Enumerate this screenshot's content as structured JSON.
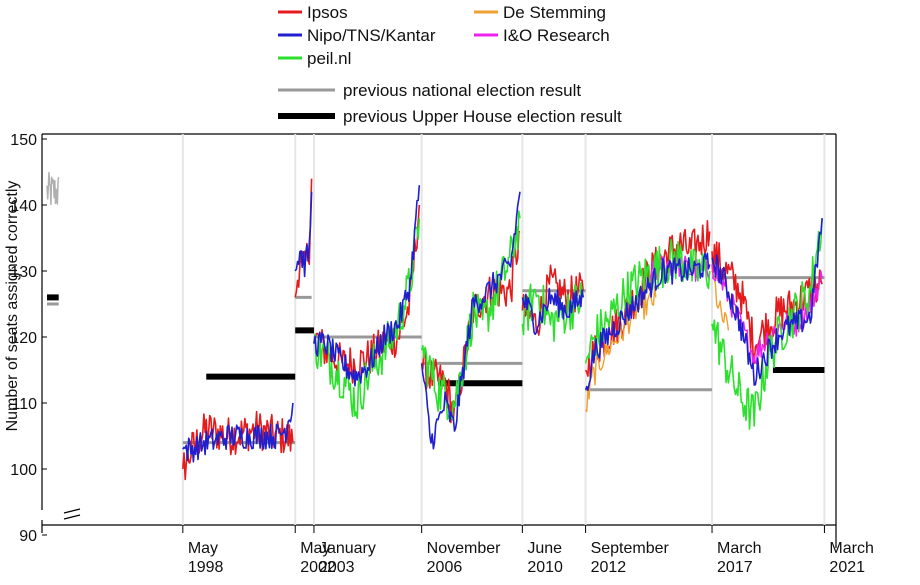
{
  "chart_data": {
    "type": "line",
    "title": "",
    "xlabel": "",
    "ylabel": "Number of seats assigned correctly",
    "ylim": [
      90,
      150
    ],
    "y_axis_break": true,
    "grid": false,
    "legend_placement": "top-center",
    "y_ticks": [
      90,
      100,
      110,
      120,
      130,
      140,
      150
    ],
    "x_ticks": [
      {
        "label": [
          "May",
          "1998"
        ],
        "date": "1998-05"
      },
      {
        "label": [
          "May",
          "2002"
        ],
        "date": "2002-05"
      },
      {
        "label": [
          "January",
          "2003"
        ],
        "date": "2003-01"
      },
      {
        "label": [
          "November",
          "2006"
        ],
        "date": "2006-11"
      },
      {
        "label": [
          "June",
          "2010"
        ],
        "date": "2010-06"
      },
      {
        "label": [
          "September",
          "2012"
        ],
        "date": "2012-09"
      },
      {
        "label": [
          "March",
          "2017"
        ],
        "date": "2017-03"
      },
      {
        "label": [
          "March",
          "2021"
        ],
        "date": "2021-03"
      }
    ],
    "legend": [
      {
        "name": "Ipsos",
        "color": "#e41a1c",
        "kind": "series"
      },
      {
        "name": "De Stemming",
        "color": "#f0a030",
        "kind": "series"
      },
      {
        "name": "Nipo/TNS/Kantar",
        "color": "#1f1fd0",
        "kind": "series"
      },
      {
        "name": "I&O Research",
        "color": "#ee22ee",
        "kind": "series"
      },
      {
        "name": "peil.nl",
        "color": "#2ee02e",
        "kind": "series"
      },
      {
        "name": "previous national election result",
        "color": "#999999",
        "kind": "reference"
      },
      {
        "name": "previous Upper House election result",
        "color": "#000000",
        "kind": "reference"
      }
    ],
    "series": [
      {
        "name": "Ipsos",
        "color": "#e41a1c",
        "noise": 3.0,
        "lw": 1.6,
        "segments": [
          [
            [
              "1998-05",
              100
            ],
            [
              "1998-09",
              103
            ],
            [
              "1999-03",
              106
            ],
            [
              "2000-01",
              105
            ],
            [
              "2001-01",
              106
            ],
            [
              "2001-09",
              105
            ],
            [
              "2002-01",
              105
            ],
            [
              "2002-04",
              104
            ]
          ],
          [
            [
              "2002-05",
              126
            ],
            [
              "2002-07",
              132
            ],
            [
              "2002-09",
              130
            ],
            [
              "2002-11",
              134
            ],
            [
              "2002-12",
              144
            ]
          ],
          [
            [
              "2003-01",
              120
            ],
            [
              "2003-06",
              118
            ],
            [
              "2004-01",
              116
            ],
            [
              "2004-07",
              116
            ],
            [
              "2005-01",
              117
            ],
            [
              "2005-07",
              119
            ],
            [
              "2006-01",
              120
            ],
            [
              "2006-06",
              125
            ],
            [
              "2006-10",
              140
            ]
          ],
          [
            [
              "2006-11",
              116
            ],
            [
              "2007-03",
              114
            ],
            [
              "2007-09",
              113
            ],
            [
              "2008-01",
              108
            ],
            [
              "2008-06",
              118
            ],
            [
              "2008-09",
              124
            ],
            [
              "2009-01",
              126
            ],
            [
              "2009-06",
              127
            ],
            [
              "2010-01",
              127
            ],
            [
              "2010-05",
              136
            ]
          ],
          [
            [
              "2010-06",
              124
            ],
            [
              "2010-12",
              122
            ],
            [
              "2011-06",
              128
            ],
            [
              "2012-01",
              126
            ],
            [
              "2012-08",
              127
            ]
          ],
          [
            [
              "2012-09",
              115
            ],
            [
              "2013-01",
              118
            ],
            [
              "2013-06",
              120
            ],
            [
              "2014-01",
              123
            ],
            [
              "2014-06",
              126
            ],
            [
              "2015-01",
              130
            ],
            [
              "2015-06",
              132
            ],
            [
              "2016-01",
              134
            ],
            [
              "2016-06",
              133
            ],
            [
              "2017-02",
              136
            ]
          ],
          [
            [
              "2017-03",
              133
            ],
            [
              "2017-09",
              130
            ],
            [
              "2018-03",
              127
            ],
            [
              "2018-09",
              119
            ],
            [
              "2019-03",
              122
            ],
            [
              "2019-09",
              124
            ],
            [
              "2020-03",
              125
            ],
            [
              "2020-09",
              127
            ],
            [
              "2021-02",
              128
            ]
          ]
        ]
      },
      {
        "name": "De Stemming",
        "color": "#f0a030",
        "noise": 2.0,
        "lw": 1.4,
        "segments": [
          [
            [
              "2012-09",
              109
            ],
            [
              "2012-12",
              114
            ],
            [
              "2013-06",
              118
            ],
            [
              "2014-01",
              121
            ],
            [
              "2014-06",
              124
            ],
            [
              "2014-12",
              125
            ],
            [
              "2015-03",
              126
            ]
          ],
          [
            [
              "2017-03",
              130
            ],
            [
              "2017-06",
              124
            ],
            [
              "2017-10",
              121
            ]
          ]
        ]
      },
      {
        "name": "I&O Research",
        "color": "#ee22ee",
        "noise": 2.0,
        "lw": 1.4,
        "segments": [
          [
            [
              "2014-12",
              129
            ],
            [
              "2015-06",
              131
            ],
            [
              "2016-01",
              131
            ],
            [
              "2016-06",
              130
            ],
            [
              "2017-02",
              130
            ]
          ],
          [
            [
              "2017-03",
              131
            ],
            [
              "2017-09",
              127
            ],
            [
              "2018-03",
              122
            ],
            [
              "2018-09",
              117
            ],
            [
              "2019-03",
              120
            ],
            [
              "2019-09",
              122
            ],
            [
              "2020-03",
              122
            ],
            [
              "2020-09",
              125
            ],
            [
              "2021-02",
              129
            ]
          ]
        ]
      },
      {
        "name": "peil.nl",
        "color": "#2ee02e",
        "noise": 3.5,
        "lw": 1.6,
        "segments": [
          [
            [
              "2003-01",
              119
            ],
            [
              "2003-06",
              117
            ],
            [
              "2004-01",
              114
            ],
            [
              "2004-07",
              110
            ],
            [
              "2005-01",
              115
            ],
            [
              "2005-07",
              118
            ],
            [
              "2006-01",
              122
            ],
            [
              "2006-06",
              128
            ],
            [
              "2006-10",
              138
            ]
          ],
          [
            [
              "2006-11",
              118
            ],
            [
              "2007-06",
              112
            ],
            [
              "2008-01",
              110
            ],
            [
              "2008-06",
              118
            ],
            [
              "2008-09",
              124
            ],
            [
              "2009-01",
              122
            ],
            [
              "2009-06",
              126
            ],
            [
              "2010-01",
              132
            ],
            [
              "2010-05",
              138
            ]
          ],
          [
            [
              "2010-06",
              122
            ],
            [
              "2010-12",
              127
            ],
            [
              "2011-06",
              122
            ],
            [
              "2012-01",
              124
            ],
            [
              "2012-08",
              126
            ]
          ],
          [
            [
              "2012-09",
              116
            ],
            [
              "2013-01",
              120
            ],
            [
              "2013-06",
              122
            ],
            [
              "2014-01",
              126
            ],
            [
              "2014-06",
              128
            ],
            [
              "2015-01",
              130
            ],
            [
              "2015-06",
              131
            ],
            [
              "2016-01",
              132
            ],
            [
              "2016-06",
              130
            ],
            [
              "2017-02",
              130
            ]
          ],
          [
            [
              "2017-03",
              122
            ],
            [
              "2017-09",
              116
            ],
            [
              "2018-03",
              111
            ],
            [
              "2018-09",
              108
            ],
            [
              "2019-03",
              117
            ],
            [
              "2019-09",
              121
            ],
            [
              "2020-03",
              124
            ],
            [
              "2020-09",
              127
            ],
            [
              "2021-02",
              138
            ]
          ]
        ]
      },
      {
        "name": "Nipo/TNS/Kantar",
        "color": "#1f1fd0",
        "noise": 2.0,
        "lw": 1.6,
        "segments": [
          [
            [
              "1998-05",
              103
            ],
            [
              "1998-09",
              103
            ],
            [
              "1999-03",
              104
            ],
            [
              "2000-01",
              105
            ],
            [
              "2001-01",
              105
            ],
            [
              "2001-09",
              105
            ],
            [
              "2002-01",
              106
            ],
            [
              "2002-04",
              110
            ]
          ],
          [
            [
              "2002-05",
              130
            ],
            [
              "2002-07",
              133
            ],
            [
              "2002-09",
              131
            ],
            [
              "2002-11",
              133
            ],
            [
              "2002-12",
              142
            ]
          ],
          [
            [
              "2003-01",
              119
            ],
            [
              "2003-06",
              119
            ],
            [
              "2004-01",
              116
            ],
            [
              "2004-07",
              114
            ],
            [
              "2005-01",
              116
            ],
            [
              "2005-07",
              120
            ],
            [
              "2006-01",
              122
            ],
            [
              "2006-06",
              128
            ],
            [
              "2006-10",
              143
            ]
          ],
          [
            [
              "2006-11",
              116
            ],
            [
              "2007-03",
              104
            ],
            [
              "2007-09",
              110
            ],
            [
              "2008-01",
              106
            ],
            [
              "2008-06",
              118
            ],
            [
              "2008-09",
              125
            ],
            [
              "2009-01",
              126
            ],
            [
              "2009-06",
              128
            ],
            [
              "2010-01",
              131
            ],
            [
              "2010-05",
              142
            ]
          ],
          [
            [
              "2010-06",
              126
            ],
            [
              "2010-12",
              122
            ],
            [
              "2011-06",
              126
            ],
            [
              "2012-01",
              124
            ],
            [
              "2012-08",
              126
            ]
          ],
          [
            [
              "2012-09",
              112
            ],
            [
              "2013-01",
              118
            ],
            [
              "2013-06",
              120
            ],
            [
              "2014-01",
              123
            ],
            [
              "2014-06",
              125
            ],
            [
              "2015-01",
              128
            ],
            [
              "2015-06",
              130
            ],
            [
              "2016-01",
              130
            ],
            [
              "2016-06",
              130
            ],
            [
              "2017-02",
              131
            ]
          ],
          [
            [
              "2017-03",
              132
            ],
            [
              "2017-09",
              128
            ],
            [
              "2018-03",
              122
            ],
            [
              "2018-09",
              114
            ],
            [
              "2019-03",
              118
            ],
            [
              "2019-09",
              121
            ],
            [
              "2020-03",
              122
            ],
            [
              "2020-09",
              123
            ],
            [
              "2021-02",
              138
            ]
          ]
        ]
      }
    ],
    "reference_lines": {
      "previous_national_election": [
        {
          "x": [
            "1993-07",
            "1993-12"
          ],
          "y": 125
        },
        {
          "x": [
            "1998-05",
            "2002-05"
          ],
          "y": 104
        },
        {
          "x": [
            "2002-05",
            "2002-12"
          ],
          "y": 126
        },
        {
          "x": [
            "2003-01",
            "2006-11"
          ],
          "y": 120
        },
        {
          "x": [
            "2006-11",
            "2010-06"
          ],
          "y": 116
        },
        {
          "x": [
            "2010-06",
            "2012-09"
          ],
          "y": 127
        },
        {
          "x": [
            "2012-09",
            "2017-03"
          ],
          "y": 112
        },
        {
          "x": [
            "2017-03",
            "2021-03"
          ],
          "y": 129
        }
      ],
      "previous_upper_house_election": [
        {
          "x": [
            "1993-07",
            "1993-12"
          ],
          "y": 126
        },
        {
          "x": [
            "1999-03",
            "2002-05"
          ],
          "y": 114
        },
        {
          "x": [
            "2002-05",
            "2003-01"
          ],
          "y": 121
        },
        {
          "x": [
            "2007-06",
            "2010-06"
          ],
          "y": 113
        },
        {
          "x": [
            "2019-05",
            "2021-03"
          ],
          "y": 115
        }
      ]
    },
    "early_period": {
      "color": "#b0b0b0",
      "x": [
        "1993-07",
        "1993-12"
      ],
      "y_range": [
        139,
        145
      ]
    }
  }
}
